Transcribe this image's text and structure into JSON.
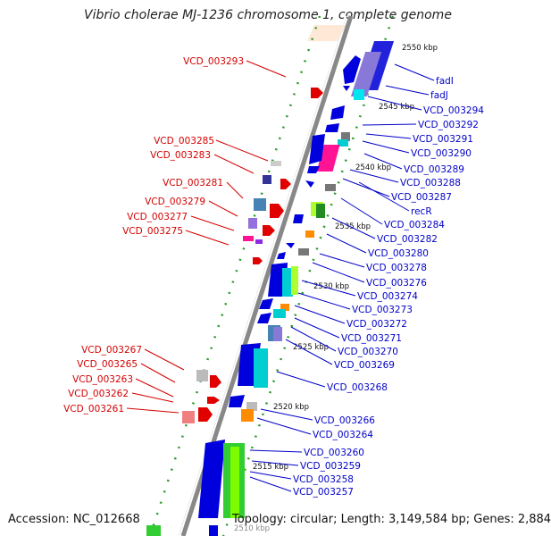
{
  "title": "Vibrio cholerae MJ-1236 chromosome 1, complete genome",
  "accession": "Accession: NC_012668",
  "topology": "Topology: circular; Length: 3,149,584 bp; Genes: 2,884",
  "ticks": [
    "2550 kbp",
    "2545 kbp",
    "2540 kbp",
    "2535 kbp",
    "2530 kbp",
    "2525 kbp",
    "2520 kbp",
    "2515 kbp",
    "2510 kbp"
  ],
  "left_labels": [
    "VCD_003293",
    "VCD_003285",
    "VCD_003283",
    "VCD_003281",
    "VCD_003279",
    "VCD_003277",
    "VCD_003275",
    "VCD_003267",
    "VCD_003265",
    "VCD_003263",
    "VCD_003262",
    "VCD_003261"
  ],
  "right_labels": [
    "fadI",
    "fadJ",
    "VCD_003294",
    "VCD_003292",
    "VCD_003291",
    "VCD_003290",
    "VCD_003289",
    "VCD_003288",
    "VCD_003287",
    "recR",
    "VCD_003284",
    "VCD_003282",
    "VCD_003280",
    "VCD_003278",
    "VCD_003276",
    "VCD_003274",
    "VCD_003273",
    "VCD_003272",
    "VCD_003271",
    "VCD_003270",
    "VCD_003269",
    "VCD_003268",
    "VCD_003266",
    "VCD_003264",
    "VCD_003260",
    "VCD_003259",
    "VCD_003258",
    "VCD_003257"
  ],
  "colors": {
    "forward": "#d40000",
    "reverse": "#0000c8",
    "backbone": "#888888",
    "gc_dots": "#2a9a2a"
  }
}
